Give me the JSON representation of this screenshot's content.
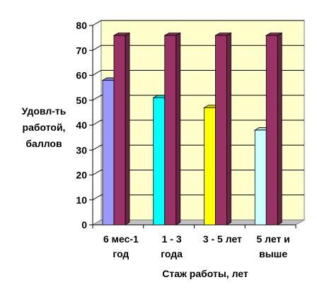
{
  "chart_data": {
    "type": "bar",
    "title": "",
    "categories": [
      [
        "6 мес-1",
        "год"
      ],
      [
        "1 - 3",
        "года"
      ],
      [
        "3 - 5 лет"
      ],
      [
        "5 лет и",
        "выше"
      ]
    ],
    "series": [
      {
        "values": [
          58,
          51,
          47,
          38
        ]
      },
      {
        "values": [
          76,
          76,
          76,
          76
        ]
      }
    ],
    "series1_colors": [
      "#9999ff",
      "#00ffff",
      "#ffff00",
      "#ccffff"
    ],
    "series2_color": "#993366",
    "plot_background": "#ffffcc",
    "ylabel": [
      "Удовл-ть",
      "работой,",
      "баллов"
    ],
    "xlabel": "Стаж работы, лет",
    "ylim": [
      0,
      80
    ],
    "yticks": [
      0,
      10,
      20,
      30,
      40,
      50,
      60,
      70,
      80
    ],
    "grid": true,
    "legend": "none"
  }
}
